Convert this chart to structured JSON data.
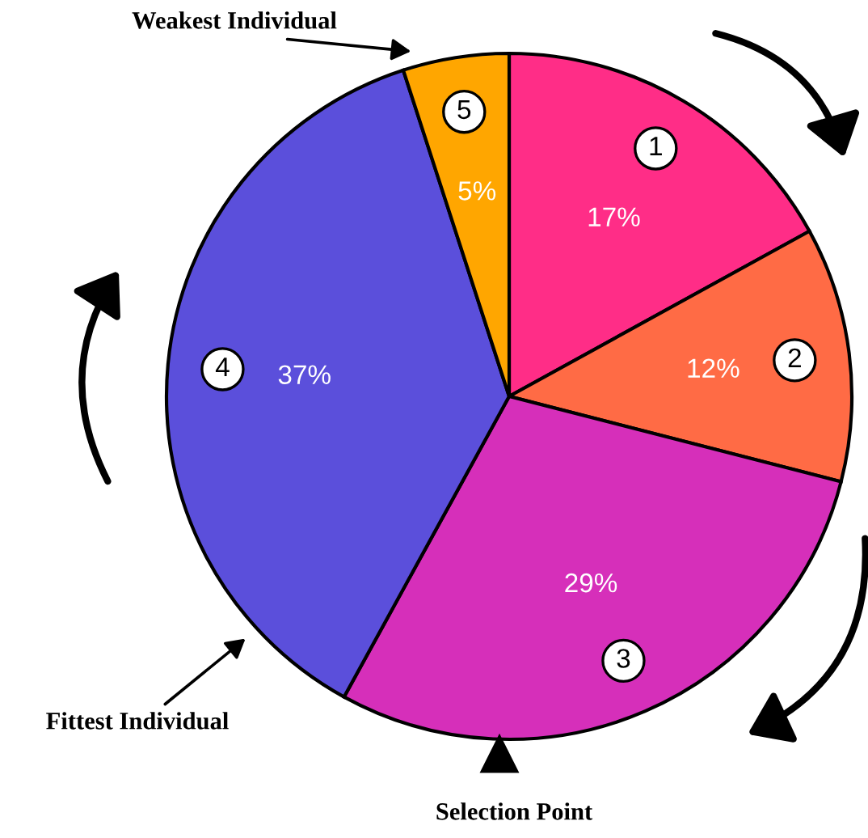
{
  "chart_data": {
    "type": "pie",
    "categories": [
      "1",
      "2",
      "3",
      "4",
      "5"
    ],
    "values": [
      17,
      12,
      29,
      37,
      5
    ],
    "value_labels": [
      "17%",
      "12%",
      "29%",
      "37%",
      "5%"
    ],
    "colors": [
      "#ff2d87",
      "#ff6b45",
      "#d62fba",
      "#5b4fdb",
      "#ffa600"
    ],
    "annotations": [
      "Weakest Individual",
      "Fittest Individual",
      "Selection Point"
    ]
  }
}
